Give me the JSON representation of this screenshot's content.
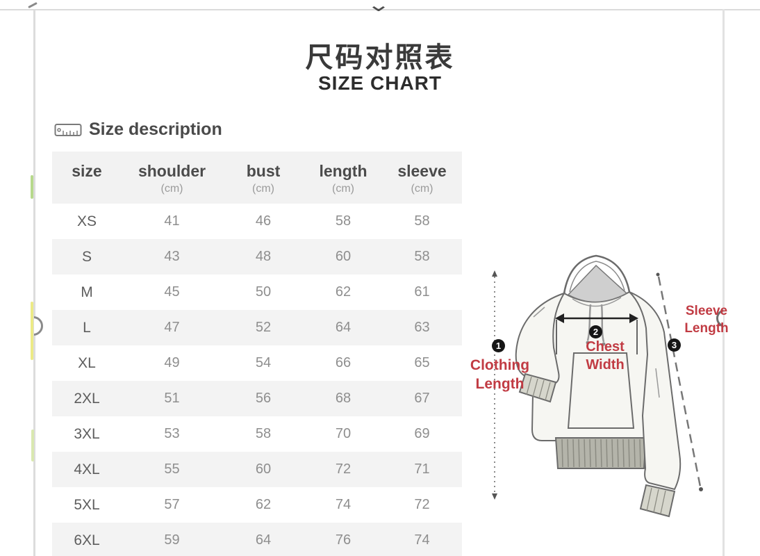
{
  "page": {
    "title_zh": "尺码对照表",
    "title_en": "SIZE CHART",
    "section_label": "Size description"
  },
  "icons": {
    "chevron_down": "⌄",
    "ruler": "ruler-icon"
  },
  "chart_data": {
    "type": "table",
    "title": "尺码对照表 SIZE CHART",
    "columns": [
      {
        "label": "size",
        "unit": ""
      },
      {
        "label": "shoulder",
        "unit": "(cm)"
      },
      {
        "label": "bust",
        "unit": "(cm)"
      },
      {
        "label": "length",
        "unit": "(cm)"
      },
      {
        "label": "sleeve",
        "unit": "(cm)"
      }
    ],
    "rows": [
      [
        "XS",
        "41",
        "46",
        "58",
        "58"
      ],
      [
        "S",
        "43",
        "48",
        "60",
        "58"
      ],
      [
        "M",
        "45",
        "50",
        "62",
        "61"
      ],
      [
        "L",
        "47",
        "52",
        "64",
        "63"
      ],
      [
        "XL",
        "49",
        "54",
        "66",
        "65"
      ],
      [
        "2XL",
        "51",
        "56",
        "68",
        "67"
      ],
      [
        "3XL",
        "53",
        "58",
        "70",
        "69"
      ],
      [
        "4XL",
        "55",
        "60",
        "72",
        "71"
      ],
      [
        "5XL",
        "57",
        "62",
        "74",
        "72"
      ],
      [
        "6XL",
        "59",
        "64",
        "76",
        "74"
      ]
    ]
  },
  "diagram": {
    "measures": [
      {
        "num": "1",
        "label": "Clothing Length"
      },
      {
        "num": "2",
        "label": "Chest Width"
      },
      {
        "num": "3",
        "label": "Sleeve Length"
      }
    ]
  },
  "colors": {
    "accent_red": "#c13b43",
    "row_stripe": "#f3f3f3",
    "frame_gray": "#dcdcdc",
    "value_gray": "#8e8e8e"
  }
}
